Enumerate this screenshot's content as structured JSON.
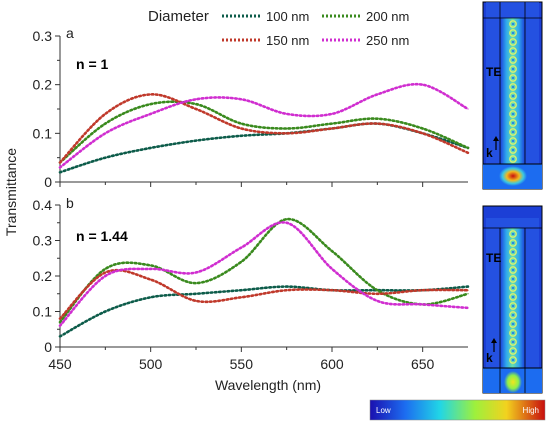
{
  "legend": {
    "title": "Diameter",
    "items": [
      {
        "label": "100 nm",
        "color": "#0d5c4a"
      },
      {
        "label": "200 nm",
        "color": "#3a8a1e"
      },
      {
        "label": "150 nm",
        "color": "#c0392b"
      },
      {
        "label": "250 nm",
        "color": "#d02ed0"
      }
    ]
  },
  "axes": {
    "xlabel": "Wavelength (nm)",
    "ylabel": "Transmittance"
  },
  "colorbar": {
    "low_label": "Low",
    "high_label": "High"
  },
  "field_maps": [
    {
      "mode_label": "TE",
      "k_label": "k"
    },
    {
      "mode_label": "TE",
      "k_label": "k"
    }
  ],
  "chart_data": [
    {
      "type": "line",
      "panel_label": "a",
      "condition": "n = 1",
      "xlim": [
        450,
        675
      ],
      "ylim": [
        0,
        0.3
      ],
      "x_ticks": [
        "450",
        "500",
        "550",
        "600",
        "650"
      ],
      "y_ticks": [
        "0",
        "0.1",
        "0.2",
        "0.3"
      ],
      "x": [
        450,
        475,
        500,
        525,
        550,
        575,
        600,
        625,
        650,
        675
      ],
      "series": [
        {
          "name": "100 nm",
          "color": "#0d5c4a",
          "values": [
            0.02,
            0.05,
            0.07,
            0.085,
            0.095,
            0.1,
            0.11,
            0.12,
            0.1,
            0.07
          ]
        },
        {
          "name": "200 nm",
          "color": "#3a8a1e",
          "values": [
            0.04,
            0.12,
            0.16,
            0.16,
            0.12,
            0.11,
            0.12,
            0.13,
            0.11,
            0.07
          ]
        },
        {
          "name": "150 nm",
          "color": "#c0392b",
          "values": [
            0.04,
            0.14,
            0.18,
            0.15,
            0.11,
            0.1,
            0.11,
            0.12,
            0.1,
            0.06
          ]
        },
        {
          "name": "250 nm",
          "color": "#d02ed0",
          "values": [
            0.03,
            0.1,
            0.14,
            0.17,
            0.17,
            0.14,
            0.14,
            0.18,
            0.2,
            0.15
          ]
        }
      ]
    },
    {
      "type": "line",
      "panel_label": "b",
      "condition": "n = 1.44",
      "xlim": [
        450,
        675
      ],
      "ylim": [
        0,
        0.4
      ],
      "x_ticks": [
        "450",
        "500",
        "550",
        "600",
        "650"
      ],
      "y_ticks": [
        "0",
        "0.1",
        "0.2",
        "0.3",
        "0.4"
      ],
      "x": [
        450,
        475,
        500,
        525,
        550,
        575,
        600,
        625,
        650,
        675
      ],
      "series": [
        {
          "name": "100 nm",
          "color": "#0d5c4a",
          "values": [
            0.03,
            0.1,
            0.14,
            0.15,
            0.16,
            0.17,
            0.16,
            0.16,
            0.16,
            0.17
          ]
        },
        {
          "name": "200 nm",
          "color": "#3a8a1e",
          "values": [
            0.07,
            0.22,
            0.23,
            0.18,
            0.24,
            0.36,
            0.27,
            0.16,
            0.12,
            0.15
          ]
        },
        {
          "name": "150 nm",
          "color": "#c0392b",
          "values": [
            0.08,
            0.21,
            0.19,
            0.13,
            0.14,
            0.16,
            0.16,
            0.15,
            0.16,
            0.16
          ]
        },
        {
          "name": "250 nm",
          "color": "#d02ed0",
          "values": [
            0.06,
            0.2,
            0.22,
            0.21,
            0.28,
            0.35,
            0.22,
            0.13,
            0.12,
            0.11
          ]
        }
      ]
    }
  ]
}
